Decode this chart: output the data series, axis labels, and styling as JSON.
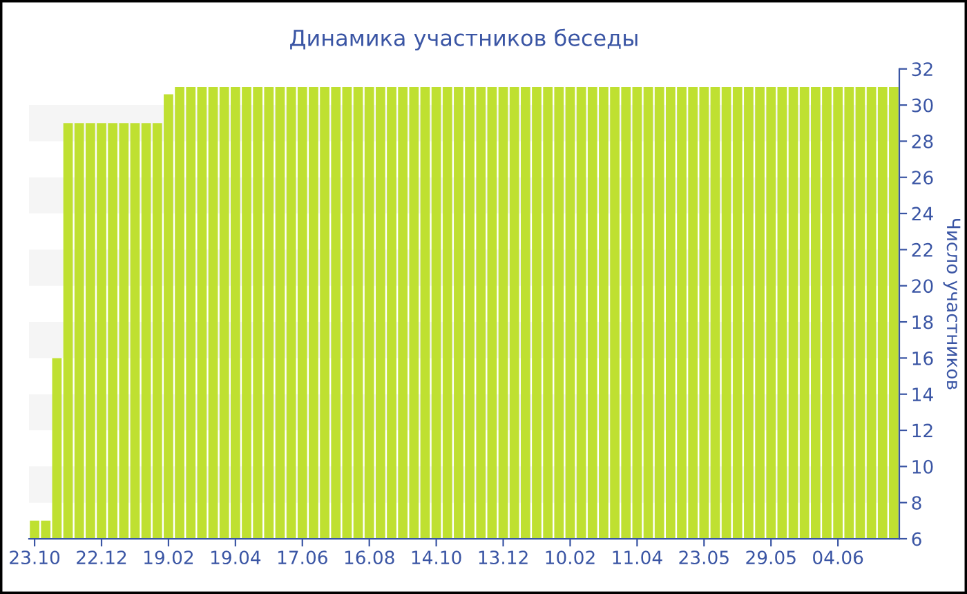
{
  "chart_data": {
    "type": "bar",
    "title": "Динамика участников беседы",
    "ylabel": "Число участников",
    "categories": [
      "23.10",
      null,
      null,
      null,
      null,
      null,
      "22.12",
      null,
      null,
      null,
      null,
      null,
      "19.02",
      null,
      null,
      null,
      null,
      null,
      "19.04",
      null,
      null,
      null,
      null,
      null,
      "17.06",
      null,
      null,
      null,
      null,
      null,
      "16.08",
      null,
      null,
      null,
      null,
      null,
      "14.10",
      null,
      null,
      null,
      null,
      null,
      "13.12",
      null,
      null,
      null,
      null,
      null,
      "10.02",
      null,
      null,
      null,
      null,
      null,
      "11.04",
      null,
      null,
      null,
      null,
      null,
      "23.05",
      null,
      null,
      null,
      null,
      null,
      "29.05",
      null,
      null,
      null,
      null,
      null,
      "04.06",
      null,
      null,
      null,
      null,
      null
    ],
    "values": [
      7,
      7,
      16,
      29,
      29,
      29,
      29,
      29,
      29,
      29,
      29,
      29,
      30.6,
      31,
      31,
      31,
      31,
      31,
      31,
      31,
      31,
      31,
      31,
      31,
      31,
      31,
      31,
      31,
      31,
      31,
      31,
      31,
      31,
      31,
      31,
      31,
      31,
      31,
      31,
      31,
      31,
      31,
      31,
      31,
      31,
      31,
      31,
      31,
      31,
      31,
      31,
      31,
      31,
      31,
      31,
      31,
      31,
      31,
      31,
      31,
      31,
      31,
      31,
      31,
      31,
      31,
      31,
      31,
      31,
      31,
      31,
      31,
      31,
      31,
      31,
      31,
      31,
      31
    ],
    "color": "#bfe031",
    "ylim": [
      6,
      32
    ],
    "yticks": [
      6,
      8,
      10,
      12,
      14,
      16,
      18,
      20,
      22,
      24,
      26,
      28,
      30,
      32
    ],
    "bands": [
      {
        "axis": "y",
        "from": 8,
        "to": 10,
        "color": "#f5f5f5"
      },
      {
        "axis": "y",
        "from": 12,
        "to": 14,
        "color": "#f5f5f5"
      },
      {
        "axis": "y",
        "from": 16,
        "to": 18,
        "color": "#f5f5f5"
      },
      {
        "axis": "y",
        "from": 20,
        "to": 22,
        "color": "#f5f5f5"
      },
      {
        "axis": "y",
        "from": 24,
        "to": 26,
        "color": "#f5f5f5"
      },
      {
        "axis": "y",
        "from": 28,
        "to": 30,
        "color": "#f5f5f5"
      }
    ],
    "legend": false
  }
}
